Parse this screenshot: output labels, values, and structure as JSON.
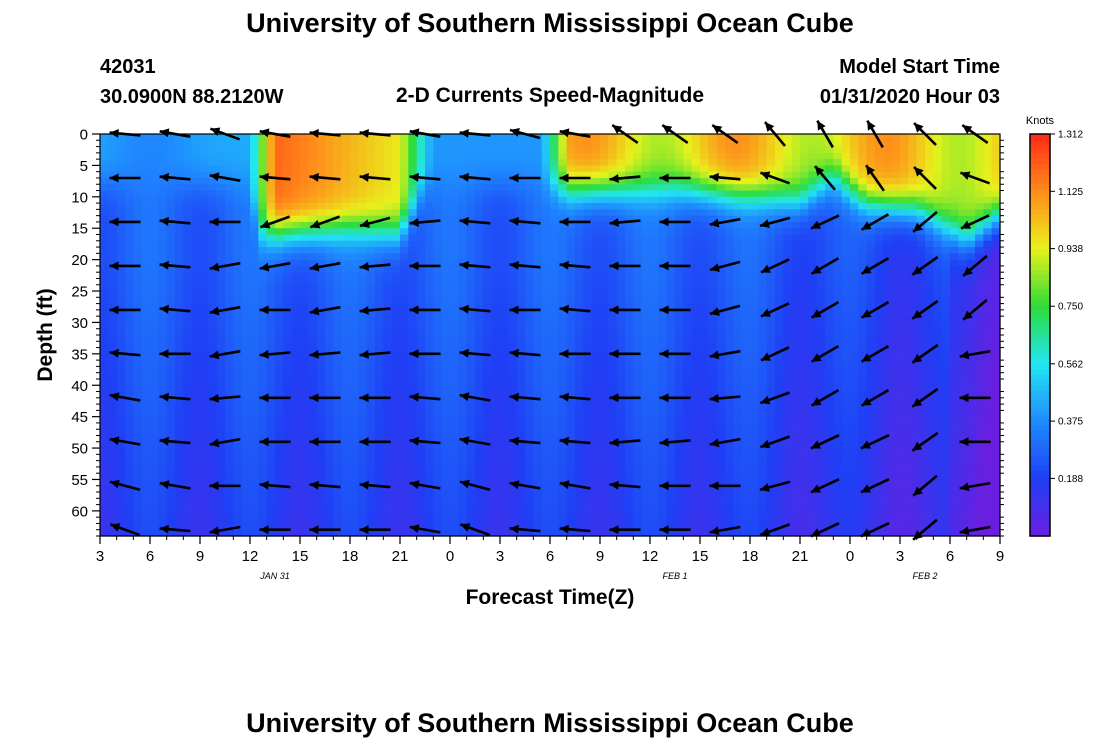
{
  "page": {
    "title_top": "University of Southern Mississippi Ocean Cube",
    "title_bottom": "University of Southern Mississippi Ocean Cube",
    "station_id": "42031",
    "station_coords": "30.0900N 88.2120W",
    "model_label": "Model Start Time",
    "model_time": "01/31/2020 Hour 03"
  },
  "colors": {
    "scale": [
      "#6a1ee0",
      "#1f3ff5",
      "#1f8cff",
      "#22e6f2",
      "#2edc39",
      "#e8f21c",
      "#ff8c1a",
      "#ff2a16"
    ],
    "arrow": "#000000"
  },
  "chart_data": {
    "type": "heatmap",
    "title": "2-D Currents Speed-Magnitude",
    "xlabel": "Forecast Time(Z)",
    "ylabel": "Depth (ft)",
    "x_tick_labels": [
      "3",
      "6",
      "9",
      "12",
      "15",
      "18",
      "21",
      "0",
      "3",
      "6",
      "9",
      "12",
      "15",
      "18",
      "21",
      "0",
      "3",
      "6",
      "9"
    ],
    "date_labels": [
      {
        "label": "JAN 31",
        "x_index": 3.5
      },
      {
        "label": "FEB 1",
        "x_index": 11.5
      },
      {
        "label": "FEB 2",
        "x_index": 16.5
      }
    ],
    "x_range_hours": [
      0,
      54
    ],
    "y_ticks": [
      0,
      5,
      10,
      15,
      20,
      25,
      30,
      35,
      40,
      45,
      50,
      55,
      60
    ],
    "y_range_ft": [
      0,
      64
    ],
    "colorbar": {
      "unit_label": "Knots",
      "min": 0.0,
      "max": 1.312,
      "tick_values": [
        1.312,
        1.125,
        0.938,
        0.75,
        0.562,
        0.375,
        0.188
      ]
    },
    "arrow_times_hours": [
      1.5,
      4.5,
      7.5,
      10.5,
      13.5,
      16.5,
      19.5,
      22.5,
      25.5,
      28.5,
      31.5,
      34.5,
      37.5,
      40.5,
      43.5,
      46.5,
      49.5,
      52.5
    ],
    "arrow_depths_ft": [
      0,
      7,
      14,
      21,
      28,
      35,
      42,
      49,
      56,
      63
    ],
    "arrow_directions_deg": [
      [
        185,
        190,
        200,
        190,
        185,
        185,
        190,
        185,
        195,
        190,
        215,
        215,
        215,
        230,
        240,
        240,
        225,
        215
      ],
      [
        180,
        185,
        190,
        185,
        185,
        185,
        185,
        185,
        180,
        180,
        175,
        180,
        185,
        200,
        230,
        235,
        225,
        200
      ],
      [
        180,
        185,
        180,
        160,
        160,
        165,
        175,
        185,
        185,
        180,
        175,
        180,
        170,
        165,
        155,
        150,
        140,
        155
      ],
      [
        180,
        185,
        170,
        170,
        170,
        175,
        180,
        185,
        185,
        185,
        180,
        180,
        165,
        155,
        150,
        150,
        145,
        140
      ],
      [
        180,
        185,
        170,
        180,
        170,
        175,
        180,
        185,
        180,
        185,
        180,
        180,
        165,
        155,
        150,
        150,
        145,
        140
      ],
      [
        185,
        180,
        170,
        175,
        175,
        175,
        180,
        185,
        185,
        180,
        180,
        180,
        170,
        155,
        150,
        150,
        145,
        170
      ],
      [
        190,
        185,
        175,
        180,
        180,
        180,
        185,
        190,
        185,
        185,
        180,
        180,
        175,
        160,
        150,
        150,
        145,
        180
      ],
      [
        190,
        185,
        170,
        180,
        180,
        180,
        185,
        190,
        185,
        185,
        175,
        175,
        170,
        160,
        155,
        155,
        145,
        180
      ],
      [
        195,
        190,
        180,
        185,
        185,
        185,
        190,
        195,
        190,
        190,
        185,
        180,
        180,
        165,
        155,
        155,
        140,
        170
      ],
      [
        200,
        185,
        170,
        180,
        180,
        180,
        190,
        200,
        185,
        185,
        180,
        180,
        170,
        160,
        155,
        155,
        140,
        170
      ]
    ]
  }
}
